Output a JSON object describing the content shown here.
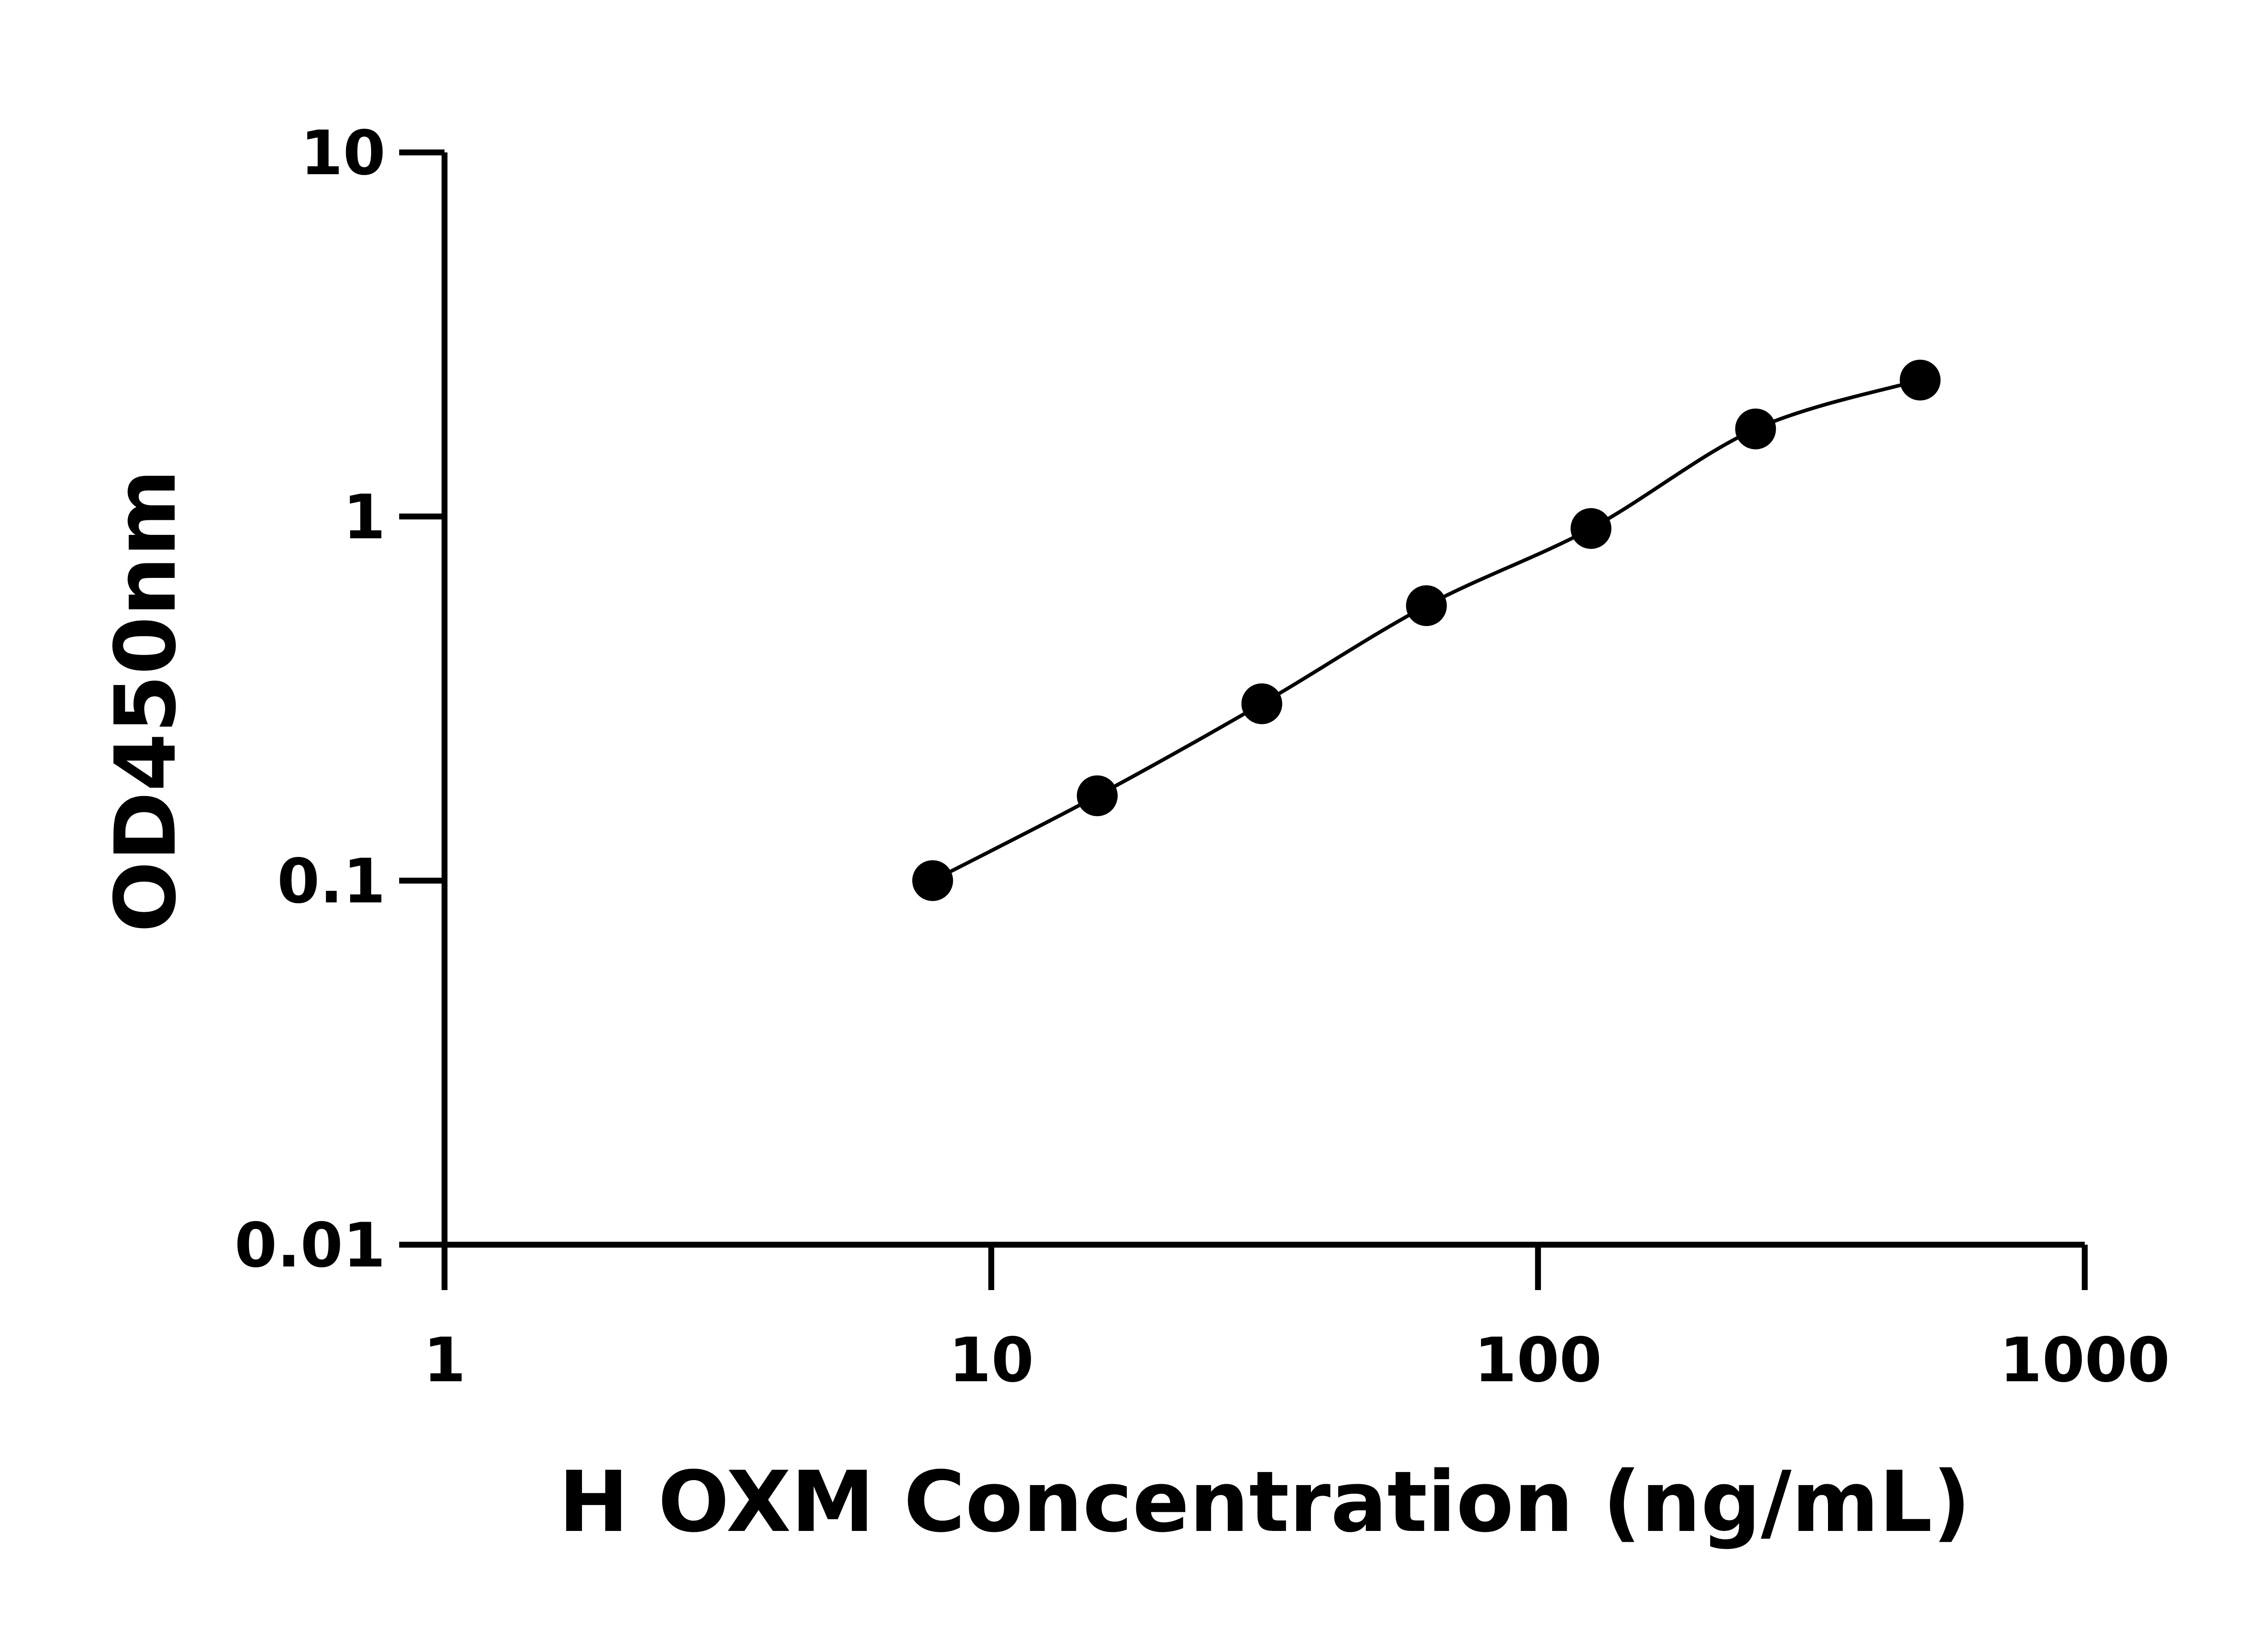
{
  "chart_data": {
    "type": "scatter",
    "xlabel": "H OXM Concentration (ng/mL)",
    "ylabel": "OD450nm",
    "xscale": "log",
    "yscale": "log",
    "xlim": [
      1,
      1000
    ],
    "ylim": [
      0.01,
      10
    ],
    "xticks": [
      "1",
      "10",
      "100",
      "1000"
    ],
    "yticks": [
      "0.01",
      "0.1",
      "1",
      "10"
    ],
    "grid": false,
    "fit_curve": true,
    "colors": {
      "points": "#000000",
      "curve": "#000000",
      "axes": "#000000"
    },
    "series": [
      {
        "x": [
          7.8125,
          15.625,
          31.25,
          62.5,
          125,
          250,
          500
        ],
        "y": [
          0.1,
          0.171,
          0.306,
          0.569,
          0.927,
          1.74,
          2.37
        ]
      }
    ]
  }
}
